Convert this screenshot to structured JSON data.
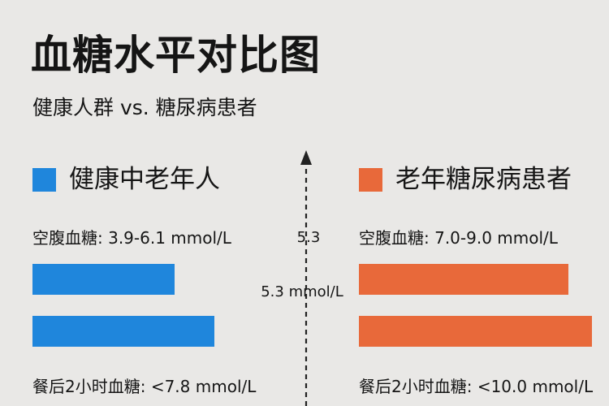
{
  "title": "血糖水平对比图",
  "subtitle": "健康人群 vs. 糖尿病患者",
  "colors": {
    "healthy": "#1f86dc",
    "diabetic": "#e8693a",
    "background": "#e9e8e6",
    "axis": "#222222"
  },
  "chart_data": {
    "type": "bar",
    "orientation": "horizontal",
    "series": [
      {
        "name": "健康中老年人",
        "color": "#1f86dc",
        "fasting_label": "空腹血糖: 3.9-6.1 mmol/L",
        "postprandial_label": "餐后2小时血糖: <7.8 mmol/L",
        "values": [
          {
            "metric": "空腹血糖",
            "range": [
              3.9,
              6.1
            ],
            "unit": "mmol/L"
          },
          {
            "metric": "餐后2小时血糖",
            "upper_bound": 7.8,
            "unit": "mmol/L"
          }
        ]
      },
      {
        "name": "老年糖尿病患者",
        "color": "#e8693a",
        "fasting_label": "空腹血糖: 7.0-9.0 mmol/L",
        "postprandial_label": "餐后2小时血糖: <10.0 mmol/L",
        "values": [
          {
            "metric": "空腹血糖",
            "range": [
              7.0,
              9.0
            ],
            "unit": "mmol/L"
          },
          {
            "metric": "餐后2小时血糖",
            "upper_bound": 10.0,
            "unit": "mmol/L"
          }
        ]
      }
    ],
    "reference_line": {
      "value": 5.3,
      "tick_label": "5.3",
      "annotation": "5.3 mmol/L",
      "style": "dashed",
      "arrow": "up"
    },
    "legend_placement": "top",
    "grid": false
  }
}
